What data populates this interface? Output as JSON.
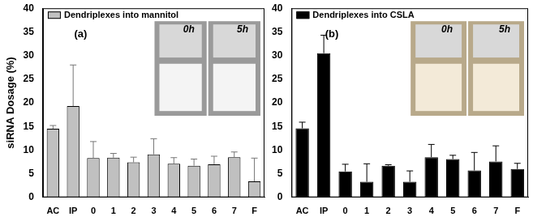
{
  "chart_data": [
    {
      "type": "bar",
      "title": "(a)",
      "ylabel": "siRNA Dosage (%)",
      "categories": [
        "AC",
        "IP",
        "0",
        "1",
        "2",
        "3",
        "4",
        "5",
        "6",
        "7",
        "F"
      ],
      "series": [
        {
          "name": "Dendriplexes into mannitol",
          "color": "#c0c0c0",
          "values": [
            14.5,
            19.3,
            8.3,
            8.4,
            7.4,
            9.1,
            7.1,
            6.7,
            7.0,
            8.5,
            3.4
          ],
          "errors": [
            0.7,
            8.7,
            3.5,
            0.9,
            1.1,
            3.3,
            1.3,
            1.4,
            1.7,
            1.1,
            4.9
          ]
        }
      ],
      "ylim": [
        0,
        40
      ],
      "yticks": [
        0,
        5,
        10,
        15,
        20,
        25,
        30,
        35,
        40
      ],
      "legend": "upper left",
      "grid": false,
      "annotations": [
        "0h",
        "5h"
      ]
    },
    {
      "type": "bar",
      "title": "(b)",
      "categories": [
        "AC",
        "IP",
        "0",
        "1",
        "2",
        "3",
        "4",
        "5",
        "6",
        "7",
        "F"
      ],
      "series": [
        {
          "name": "Dendriplexes into CSLA",
          "color": "#000000",
          "values": [
            14.6,
            30.5,
            5.5,
            3.3,
            6.7,
            3.3,
            8.5,
            8.1,
            5.7,
            7.6,
            6.0
          ],
          "errors": [
            1.3,
            3.8,
            1.5,
            3.8,
            0.2,
            2.3,
            2.7,
            0.8,
            3.8,
            3.3,
            1.2
          ]
        }
      ],
      "ylim": [
        0,
        40
      ],
      "yticks": [
        0,
        5,
        10,
        15,
        20,
        25,
        30,
        35,
        40
      ],
      "legend": "upper left",
      "grid": false,
      "annotations": [
        "0h",
        "5h"
      ]
    }
  ]
}
